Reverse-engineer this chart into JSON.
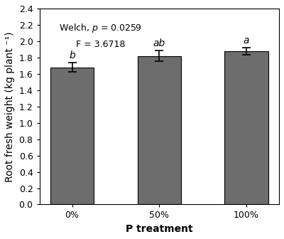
{
  "categories": [
    "0%",
    "50%",
    "100%"
  ],
  "values": [
    1.68,
    1.82,
    1.875
  ],
  "errors": [
    0.055,
    0.065,
    0.045
  ],
  "bar_color": "#6d6d6d",
  "bar_edgecolor": "#000000",
  "bar_width": 0.5,
  "xlabel": "P treatment",
  "ylabel": "Root fresh weight (kg plant ⁻¹)",
  "ylim": [
    0.0,
    2.4
  ],
  "yticks": [
    0.0,
    0.2,
    0.4,
    0.6,
    0.8,
    1.0,
    1.2,
    1.4,
    1.6,
    1.8,
    2.0,
    2.2,
    2.4
  ],
  "significance_labels": [
    "b",
    "ab",
    "a"
  ],
  "annotation_line1": "Welch, ",
  "annotation_p_text": "p",
  "annotation_line1_rest": " = 0.0259",
  "annotation_line2_pre": "F = 3.6718",
  "label_fontsize": 10,
  "tick_fontsize": 9,
  "sig_fontsize": 10,
  "annot_fontsize": 9,
  "background_color": "#ffffff"
}
